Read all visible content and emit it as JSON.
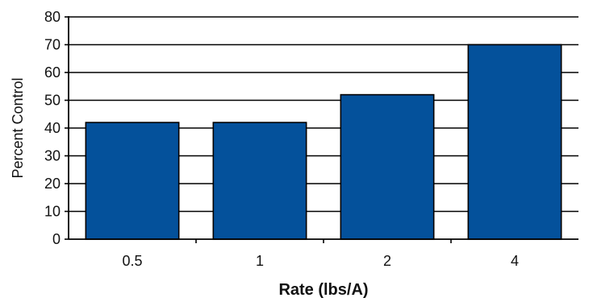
{
  "chart_data": {
    "type": "bar",
    "title": "",
    "categories": [
      "0.5",
      "1",
      "2",
      "4"
    ],
    "values": [
      42,
      42,
      52,
      70
    ],
    "xlabel": "Rate (lbs/A)",
    "ylabel": "Percent Control",
    "ylim": [
      0,
      80
    ],
    "yticks": [
      "0",
      "10",
      "20",
      "30",
      "40",
      "50",
      "60",
      "70",
      "80"
    ],
    "grid": true,
    "bar_color": "#04519b",
    "grid_color": "#000000"
  }
}
